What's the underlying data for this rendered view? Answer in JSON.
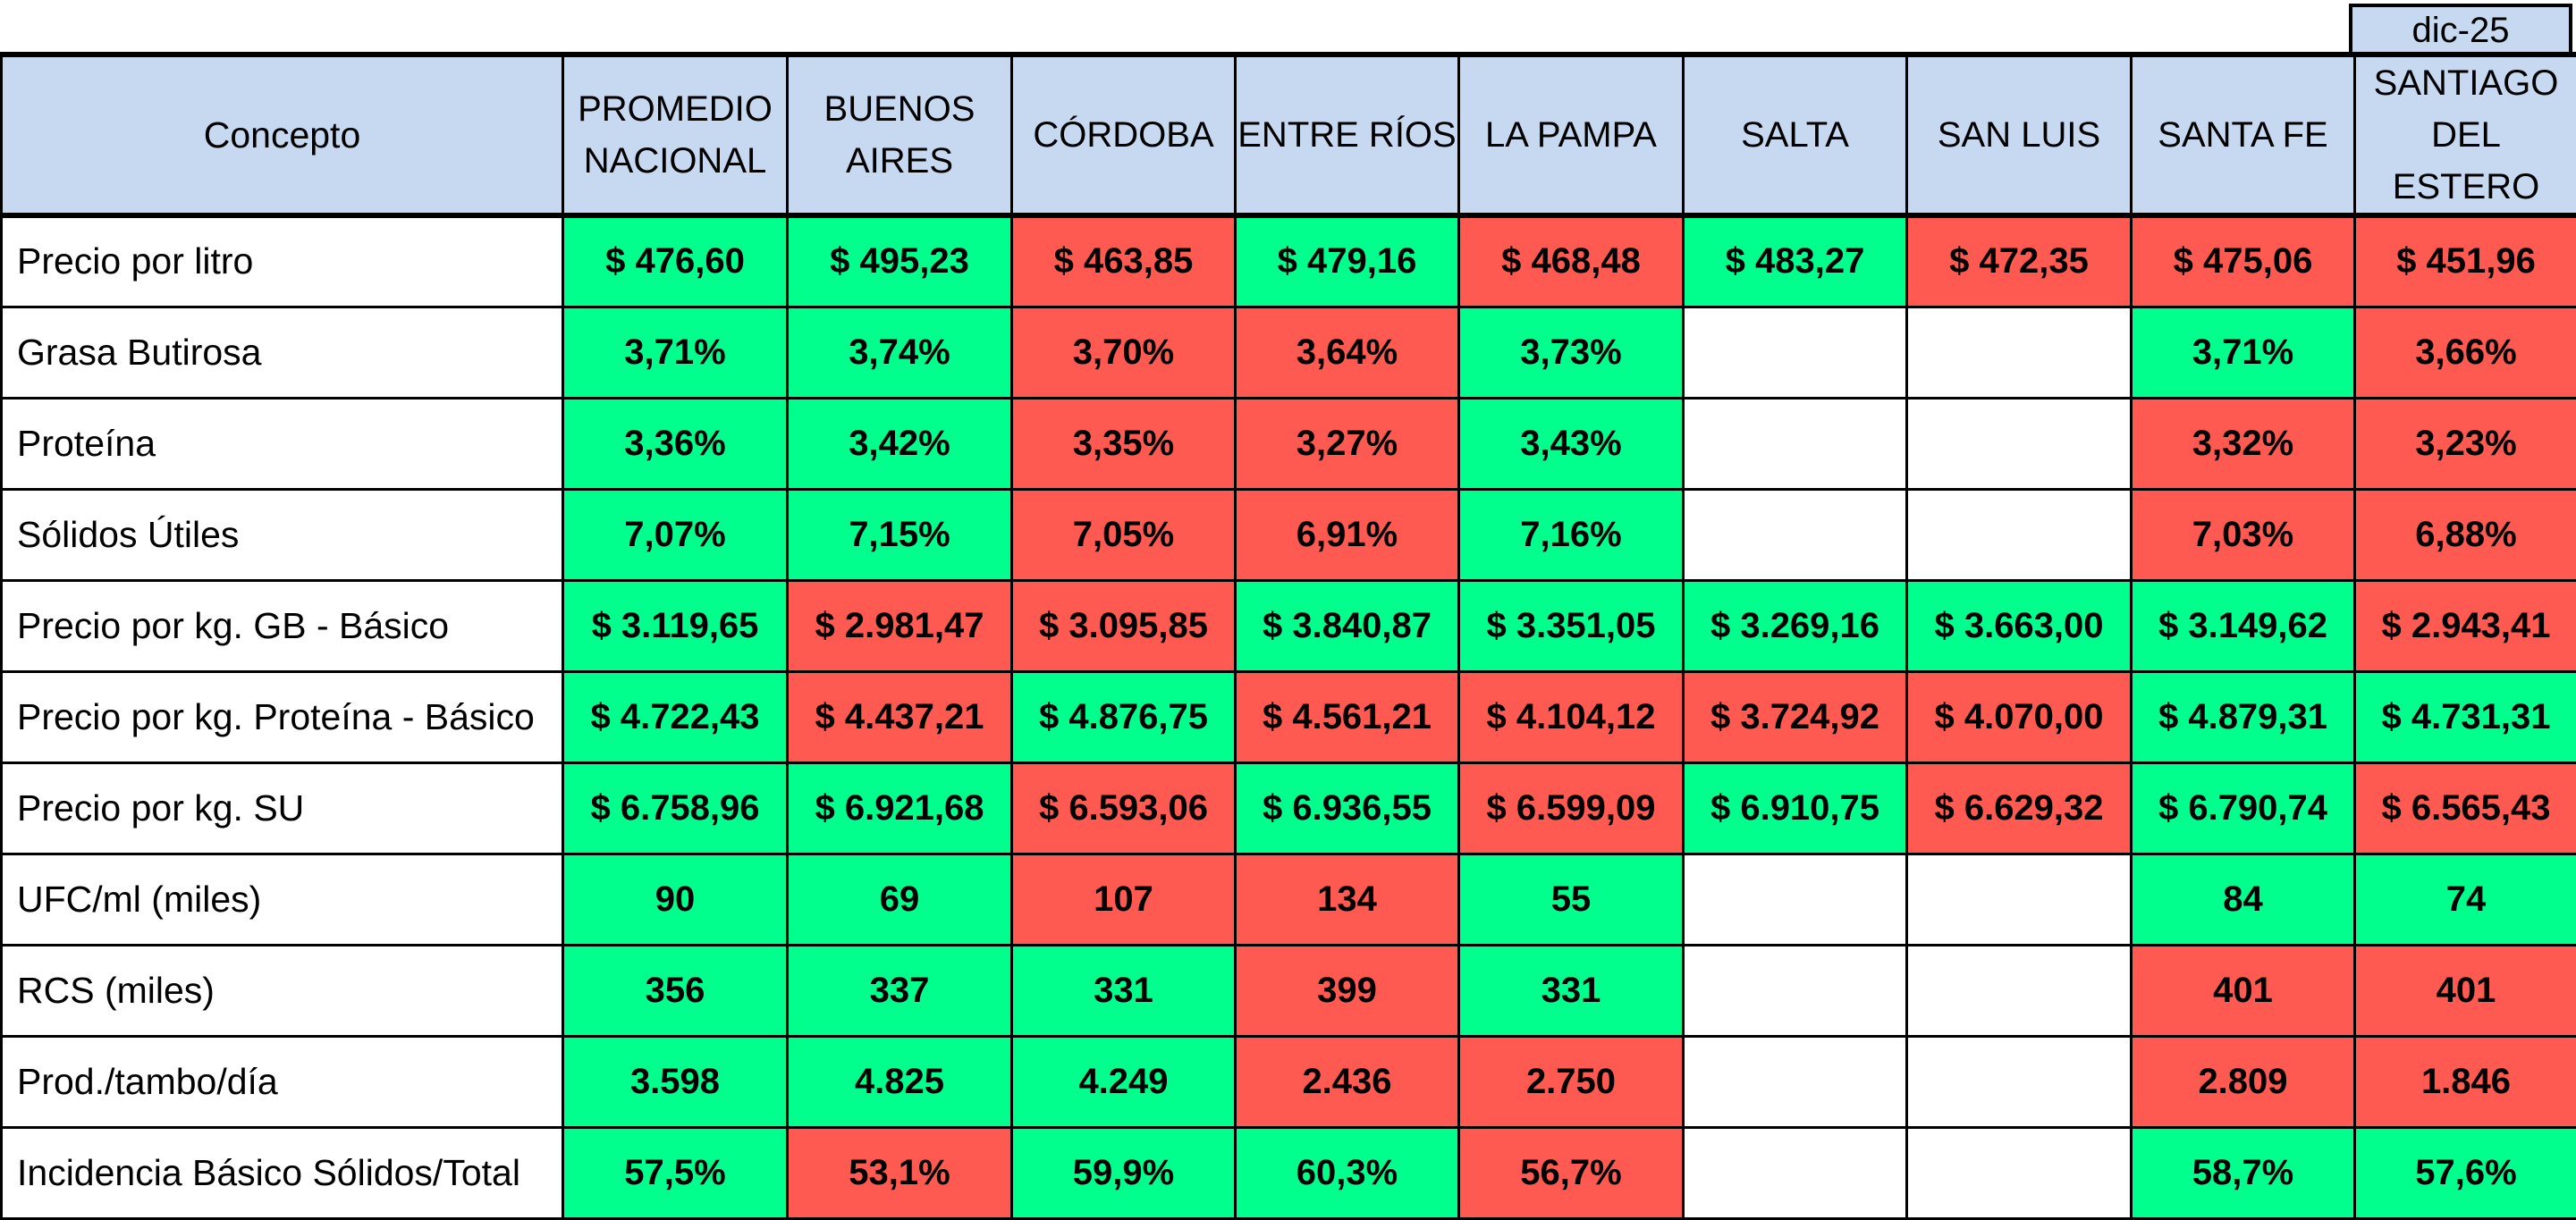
{
  "period": "dic-25",
  "colors": {
    "header_bg": "#c6d9f1",
    "good": "#00ff8c",
    "bad": "#ff5a52",
    "empty": "#ffffff"
  },
  "header": {
    "concept": "Concepto",
    "columns": [
      {
        "line1": "PROMEDIO",
        "line2": "NACIONAL"
      },
      {
        "line1": "BUENOS",
        "line2": "AIRES"
      },
      {
        "line1": "CÓRDOBA",
        "line2": ""
      },
      {
        "line1": "ENTRE RÍOS",
        "line2": ""
      },
      {
        "line1": "LA PAMPA",
        "line2": ""
      },
      {
        "line1": "SALTA",
        "line2": ""
      },
      {
        "line1": "SAN LUIS",
        "line2": ""
      },
      {
        "line1": "SANTA FE",
        "line2": ""
      },
      {
        "line1": "SANTIAGO",
        "line2": "DEL ESTERO"
      }
    ]
  },
  "rows": [
    {
      "label": "Precio por litro",
      "values": [
        "$ 476,60",
        "$ 495,23",
        "$ 463,85",
        "$ 479,16",
        "$ 468,48",
        "$ 483,27",
        "$ 472,35",
        "$ 475,06",
        "$ 451,96"
      ],
      "status": [
        "good",
        "good",
        "bad",
        "good",
        "bad",
        "good",
        "bad",
        "bad",
        "bad"
      ]
    },
    {
      "label": "Grasa Butirosa",
      "values": [
        "3,71%",
        "3,74%",
        "3,70%",
        "3,64%",
        "3,73%",
        "",
        "",
        "3,71%",
        "3,66%"
      ],
      "status": [
        "good",
        "good",
        "bad",
        "bad",
        "good",
        "empty",
        "empty",
        "good",
        "bad"
      ]
    },
    {
      "label": "Proteína",
      "values": [
        "3,36%",
        "3,42%",
        "3,35%",
        "3,27%",
        "3,43%",
        "",
        "",
        "3,32%",
        "3,23%"
      ],
      "status": [
        "good",
        "good",
        "bad",
        "bad",
        "good",
        "empty",
        "empty",
        "bad",
        "bad"
      ]
    },
    {
      "label": "Sólidos Útiles",
      "values": [
        "7,07%",
        "7,15%",
        "7,05%",
        "6,91%",
        "7,16%",
        "",
        "",
        "7,03%",
        "6,88%"
      ],
      "status": [
        "good",
        "good",
        "bad",
        "bad",
        "good",
        "empty",
        "empty",
        "bad",
        "bad"
      ]
    },
    {
      "label": "Precio por kg. GB - Básico",
      "values": [
        "$ 3.119,65",
        "$ 2.981,47",
        "$ 3.095,85",
        "$ 3.840,87",
        "$ 3.351,05",
        "$ 3.269,16",
        "$ 3.663,00",
        "$ 3.149,62",
        "$ 2.943,41"
      ],
      "status": [
        "good",
        "bad",
        "bad",
        "good",
        "good",
        "good",
        "good",
        "good",
        "bad"
      ]
    },
    {
      "label": "Precio por kg. Proteína - Básico",
      "values": [
        "$ 4.722,43",
        "$ 4.437,21",
        "$ 4.876,75",
        "$ 4.561,21",
        "$ 4.104,12",
        "$ 3.724,92",
        "$ 4.070,00",
        "$ 4.879,31",
        "$ 4.731,31"
      ],
      "status": [
        "good",
        "bad",
        "good",
        "bad",
        "bad",
        "bad",
        "bad",
        "good",
        "good"
      ]
    },
    {
      "label": "Precio por kg. SU",
      "values": [
        "$ 6.758,96",
        "$ 6.921,68",
        "$ 6.593,06",
        "$ 6.936,55",
        "$ 6.599,09",
        "$ 6.910,75",
        "$ 6.629,32",
        "$ 6.790,74",
        "$ 6.565,43"
      ],
      "status": [
        "good",
        "good",
        "bad",
        "good",
        "bad",
        "good",
        "bad",
        "good",
        "bad"
      ]
    },
    {
      "label": "UFC/ml (miles)",
      "values": [
        "90",
        "69",
        "107",
        "134",
        "55",
        "",
        "",
        "84",
        "74"
      ],
      "status": [
        "good",
        "good",
        "bad",
        "bad",
        "good",
        "empty",
        "empty",
        "good",
        "good"
      ]
    },
    {
      "label": "RCS (miles)",
      "values": [
        "356",
        "337",
        "331",
        "399",
        "331",
        "",
        "",
        "401",
        "401"
      ],
      "status": [
        "good",
        "good",
        "good",
        "bad",
        "good",
        "empty",
        "empty",
        "bad",
        "bad"
      ]
    },
    {
      "label": "Prod./tambo/día",
      "values": [
        "3.598",
        "4.825",
        "4.249",
        "2.436",
        "2.750",
        "",
        "",
        "2.809",
        "1.846"
      ],
      "status": [
        "good",
        "good",
        "good",
        "bad",
        "bad",
        "empty",
        "empty",
        "bad",
        "bad"
      ]
    },
    {
      "label": "Incidencia Básico Sólidos/Total",
      "values": [
        "57,5%",
        "53,1%",
        "59,9%",
        "60,3%",
        "56,7%",
        "",
        "",
        "58,7%",
        "57,6%"
      ],
      "status": [
        "good",
        "bad",
        "good",
        "good",
        "bad",
        "empty",
        "empty",
        "good",
        "good"
      ]
    }
  ]
}
